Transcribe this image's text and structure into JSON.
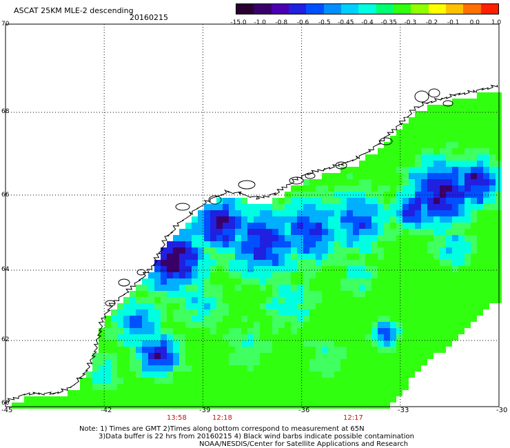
{
  "header": {
    "title": "ASCAT 25KM MLE-2 descending",
    "date": "20160215"
  },
  "colorbar": {
    "labels": [
      "-15.0",
      "-1.0",
      "-0.8",
      "-0.6",
      "-0.5",
      "-0.45",
      "-0.4",
      "-0.35",
      "-0.3",
      "-0.2",
      "-0.1",
      "0.0",
      "1.0"
    ],
    "colors": [
      "#2a0030",
      "#3a006a",
      "#4a00b0",
      "#2020e0",
      "#0050ff",
      "#0090ff",
      "#00d0ff",
      "#00ffe0",
      "#00ff70",
      "#30ff10",
      "#90ff00",
      "#ffff00",
      "#ffc000",
      "#ff7000",
      "#ff2000"
    ]
  },
  "axes": {
    "x_ticks": [
      "-45",
      "-42",
      "-39",
      "-36",
      "-33",
      "-30"
    ],
    "y_ticks": [
      "70",
      "68",
      "66",
      "64",
      "62",
      "60"
    ],
    "lon_range": [
      -45,
      -30
    ],
    "lat_range": [
      60,
      70
    ],
    "grid": "dotted"
  },
  "times": [
    "13:58",
    "12:18",
    "12:17"
  ],
  "notes": {
    "line1": "Note: 1) Times are GMT 2)Times along bottom correspond to measurement at 65N",
    "line2": "3)Data buffer is 22 hrs from 20160215 4) Black wind barbs indicate possible contamination",
    "line3": "NOAA/NESDIS/Center for Satellite Applications and Research"
  },
  "palette": {
    "land": "#ffffff",
    "coast": "#000000",
    "field_green": "#30ff10",
    "field_cyan": "#00ffe0",
    "field_blue": "#0050ff",
    "field_deep": "#2020e0",
    "field_violet": "#3a006a"
  }
}
